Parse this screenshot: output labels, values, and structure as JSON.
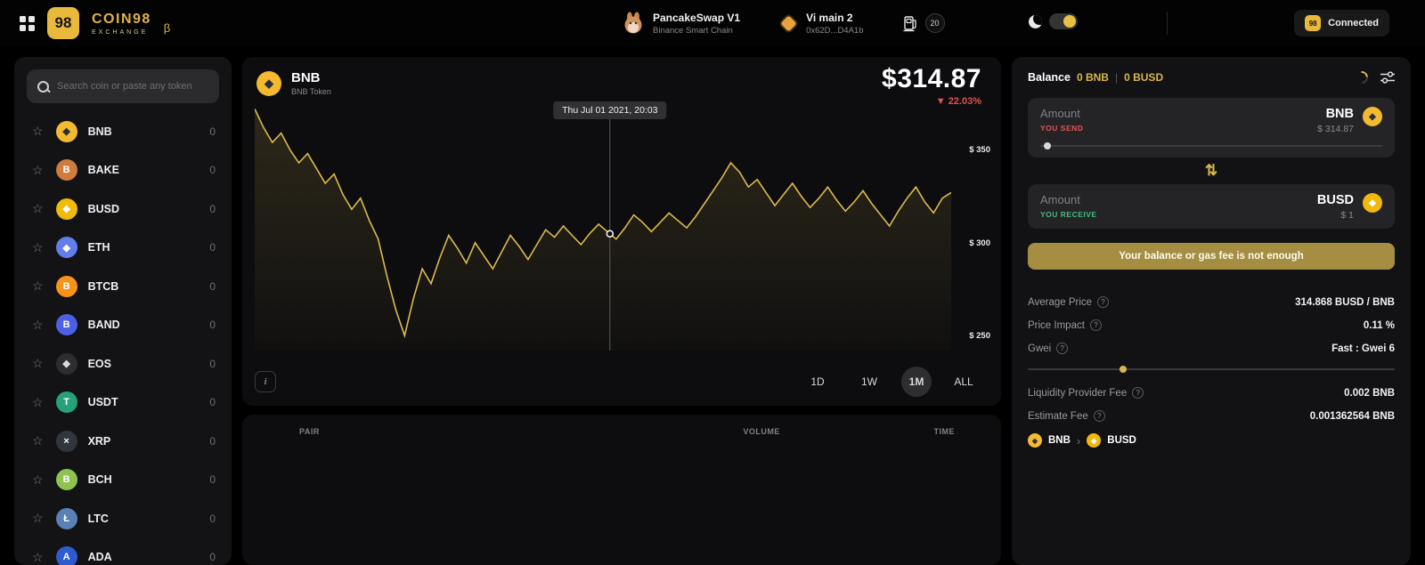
{
  "header": {
    "logo_glyph": "98",
    "logo_text": "COIN98",
    "logo_sub": "EXCHANGE",
    "beta_glyph": "β",
    "dex": {
      "name": "PancakeSwap V1",
      "network": "Binance Smart Chain"
    },
    "wallet": {
      "name": "Vi main 2",
      "address": "0x62D...D4A1b"
    },
    "gas_value": "20",
    "connected_label": "Connected",
    "accent_color": "#d9b64d"
  },
  "sidebar": {
    "search_placeholder": "Search coin or paste any token",
    "tokens": [
      {
        "symbol": "BNB",
        "balance": "0",
        "glyph": "◆",
        "color": "#f3ba2f",
        "glyph_color": "#2b2f36"
      },
      {
        "symbol": "BAKE",
        "balance": "0",
        "glyph": "B",
        "color": "#cf7c3e",
        "glyph_color": "#ffffff"
      },
      {
        "symbol": "BUSD",
        "balance": "0",
        "glyph": "◆",
        "color": "#f0b90b",
        "glyph_color": "#ffffff"
      },
      {
        "symbol": "ETH",
        "balance": "0",
        "glyph": "◆",
        "color": "#627eea",
        "glyph_color": "#ffffff"
      },
      {
        "symbol": "BTCB",
        "balance": "0",
        "glyph": "B",
        "color": "#f7931a",
        "glyph_color": "#ffffff"
      },
      {
        "symbol": "BAND",
        "balance": "0",
        "glyph": "B",
        "color": "#4d5fe3",
        "glyph_color": "#ffffff"
      },
      {
        "symbol": "EOS",
        "balance": "0",
        "glyph": "◆",
        "color": "#2d2d31",
        "glyph_color": "#dddddd"
      },
      {
        "symbol": "USDT",
        "balance": "0",
        "glyph": "T",
        "color": "#26a17b",
        "glyph_color": "#ffffff"
      },
      {
        "symbol": "XRP",
        "balance": "0",
        "glyph": "×",
        "color": "#31363e",
        "glyph_color": "#ffffff"
      },
      {
        "symbol": "BCH",
        "balance": "0",
        "glyph": "B",
        "color": "#8dc351",
        "glyph_color": "#ffffff"
      },
      {
        "symbol": "LTC",
        "balance": "0",
        "glyph": "Ł",
        "color": "#5a81b5",
        "glyph_color": "#ffffff"
      },
      {
        "symbol": "ADA",
        "balance": "0",
        "glyph": "A",
        "color": "#2f5bd0",
        "glyph_color": "#ffffff"
      }
    ]
  },
  "chart": {
    "token_symbol": "BNB",
    "token_name": "BNB Token",
    "price": "$314.87",
    "change_dir": "▼",
    "change": "22.03%",
    "info_glyph": "i",
    "ranges": [
      {
        "label": "1D",
        "active": false
      },
      {
        "label": "1W",
        "active": false
      },
      {
        "label": "1M",
        "active": true
      },
      {
        "label": "ALL",
        "active": false
      }
    ]
  },
  "pairs_table": {
    "headers": [
      "PAIR",
      "VOLUME",
      "TIME"
    ]
  },
  "swap": {
    "balance_label": "Balance",
    "balance_bnb": "0 BNB",
    "separator": "|",
    "balance_busd": "0 BUSD",
    "send": {
      "label": "Amount",
      "direction": "YOU SEND",
      "token": "BNB",
      "value": "$ 314.87"
    },
    "swap_icon_glyph": "⇅",
    "receive": {
      "label": "Amount",
      "direction": "YOU RECEIVE",
      "token": "BUSD",
      "value": "$ 1"
    },
    "button_label": "Your balance or gas fee is not enough",
    "details": [
      {
        "label": "Average Price",
        "value": "314.868 BUSD / BNB"
      },
      {
        "label": "Price Impact",
        "value": "0.11 %"
      },
      {
        "label": "Gwei",
        "value": "Fast : Gwei 6",
        "info": true,
        "slider": true,
        "slider_pos": 25
      },
      {
        "label": "Liquidity Provider Fee",
        "value": "0.002 BNB"
      },
      {
        "label": "Estimate Fee",
        "value": "0.001362564 BNB"
      }
    ],
    "route": {
      "from": "BNB",
      "to": "BUSD"
    }
  },
  "chart_data": {
    "type": "line",
    "title": "BNB price — 1M view",
    "x_range": "1 month ending Thu Jul 01 2021",
    "ylim": [
      230,
      365
    ],
    "y_ticks": [
      {
        "label": "$ 350",
        "value": 350
      },
      {
        "label": "$ 300",
        "value": 300
      },
      {
        "label": "$ 250",
        "value": 250
      }
    ],
    "line_color": "#dcba4e",
    "crosshair": {
      "x_frac": 0.51,
      "label": "Thu Jul 01 2021, 20:03"
    },
    "prices": [
      360,
      350,
      342,
      347,
      338,
      331,
      336,
      328,
      320,
      325,
      314,
      306,
      312,
      300,
      290,
      270,
      252,
      238,
      258,
      274,
      266,
      280,
      292,
      285,
      277,
      288,
      281,
      274,
      283,
      292,
      286,
      279,
      287,
      295,
      291,
      297,
      292,
      287,
      293,
      298,
      294,
      290,
      296,
      303,
      299,
      294,
      299,
      304,
      300,
      296,
      302,
      309,
      316,
      323,
      331,
      326,
      318,
      322,
      315,
      308,
      314,
      320,
      313,
      307,
      312,
      318,
      311,
      305,
      310,
      316,
      309,
      303,
      297,
      305,
      312,
      318,
      310,
      304,
      312,
      315
    ]
  }
}
